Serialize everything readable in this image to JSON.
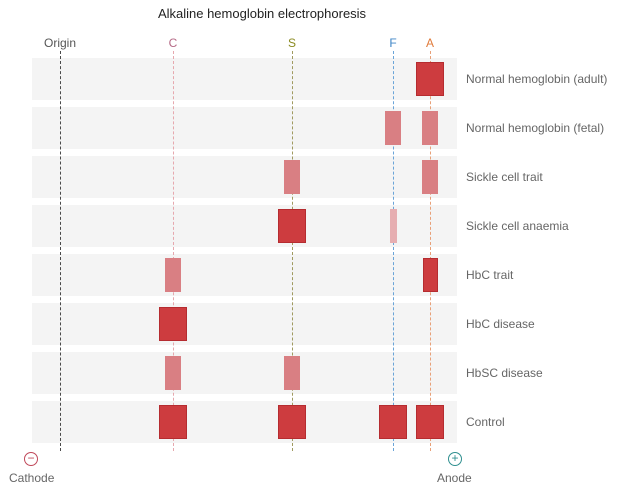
{
  "title": "Alkaline hemoglobin electrophoresis",
  "columns": [
    {
      "key": "origin",
      "label": "Origin",
      "color": "#555555",
      "line_color": "#4a4a4a"
    },
    {
      "key": "C",
      "label": "C",
      "color": "#b56a86",
      "line_color": "#e6a8ae"
    },
    {
      "key": "S",
      "label": "S",
      "color": "#8a8a20",
      "line_color": "#a09a60"
    },
    {
      "key": "F",
      "label": "F",
      "color": "#3f86c7",
      "line_color": "#6aa4d8"
    },
    {
      "key": "A",
      "label": "A",
      "color": "#e07a3a",
      "line_color": "#e8a078"
    }
  ],
  "rows": [
    {
      "label": "Normal hemoglobin (adult)",
      "bands": [
        {
          "col": "A",
          "weight": "major"
        }
      ]
    },
    {
      "label": "Normal hemoglobin (fetal)",
      "bands": [
        {
          "col": "F",
          "weight": "minor"
        },
        {
          "col": "A",
          "weight": "minor"
        }
      ]
    },
    {
      "label": "Sickle cell trait",
      "bands": [
        {
          "col": "S",
          "weight": "minor"
        },
        {
          "col": "A",
          "weight": "minor"
        }
      ]
    },
    {
      "label": "Sickle cell anaemia",
      "bands": [
        {
          "col": "S",
          "weight": "major"
        },
        {
          "col": "F",
          "weight": "trace"
        }
      ]
    },
    {
      "label": "HbC trait",
      "bands": [
        {
          "col": "C",
          "weight": "minor"
        },
        {
          "col": "A",
          "weight": "narrow"
        }
      ]
    },
    {
      "label": "HbC disease",
      "bands": [
        {
          "col": "C",
          "weight": "major"
        }
      ]
    },
    {
      "label": "HbSC disease",
      "bands": [
        {
          "col": "C",
          "weight": "minor"
        },
        {
          "col": "S",
          "weight": "minor"
        }
      ]
    },
    {
      "label": "Control",
      "bands": [
        {
          "col": "C",
          "weight": "major"
        },
        {
          "col": "S",
          "weight": "major"
        },
        {
          "col": "F",
          "weight": "major"
        },
        {
          "col": "A",
          "weight": "major"
        }
      ]
    }
  ],
  "electrodes": {
    "cathode": {
      "symbol": "−",
      "label": "Cathode",
      "color": "#c0485a"
    },
    "anode": {
      "symbol": "+",
      "label": "Anode",
      "color": "#2f8f8f"
    }
  }
}
